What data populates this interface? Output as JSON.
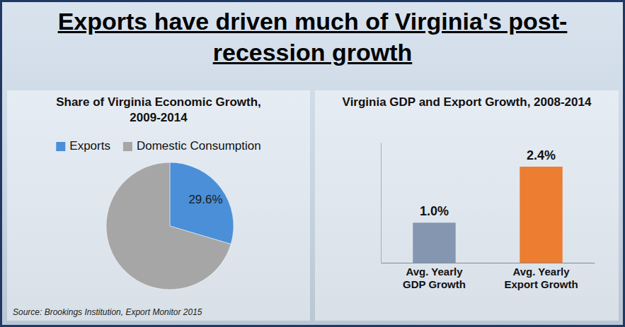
{
  "header": {
    "title": "Exports have driven much of Virginia's post-recession growth"
  },
  "source": "Source: Brookings Institution, Export Monitor 2015",
  "chart_data": [
    {
      "type": "pie",
      "title": "Share of Virginia Economic Growth, 2009-2014",
      "categories": [
        "Exports",
        "Domestic Consumption"
      ],
      "values": [
        29.6,
        70.4
      ],
      "value_labels": [
        "29.6%",
        null
      ],
      "colors": [
        "#4a8fd8",
        "#a6a6a6"
      ],
      "legend": "top",
      "data_labels": true
    },
    {
      "type": "bar",
      "title": "Virginia GDP and Export Growth, 2008-2014",
      "categories": [
        "Avg. Yearly GDP Growth",
        "Avg. Yearly Export Growth"
      ],
      "values": [
        1.0,
        2.4
      ],
      "value_labels": [
        "1.0%",
        "2.4%"
      ],
      "colors": [
        "#8496b0",
        "#ed7d31"
      ],
      "ylim": [
        0,
        3
      ],
      "tick_labels": "x",
      "data_labels": true
    }
  ]
}
